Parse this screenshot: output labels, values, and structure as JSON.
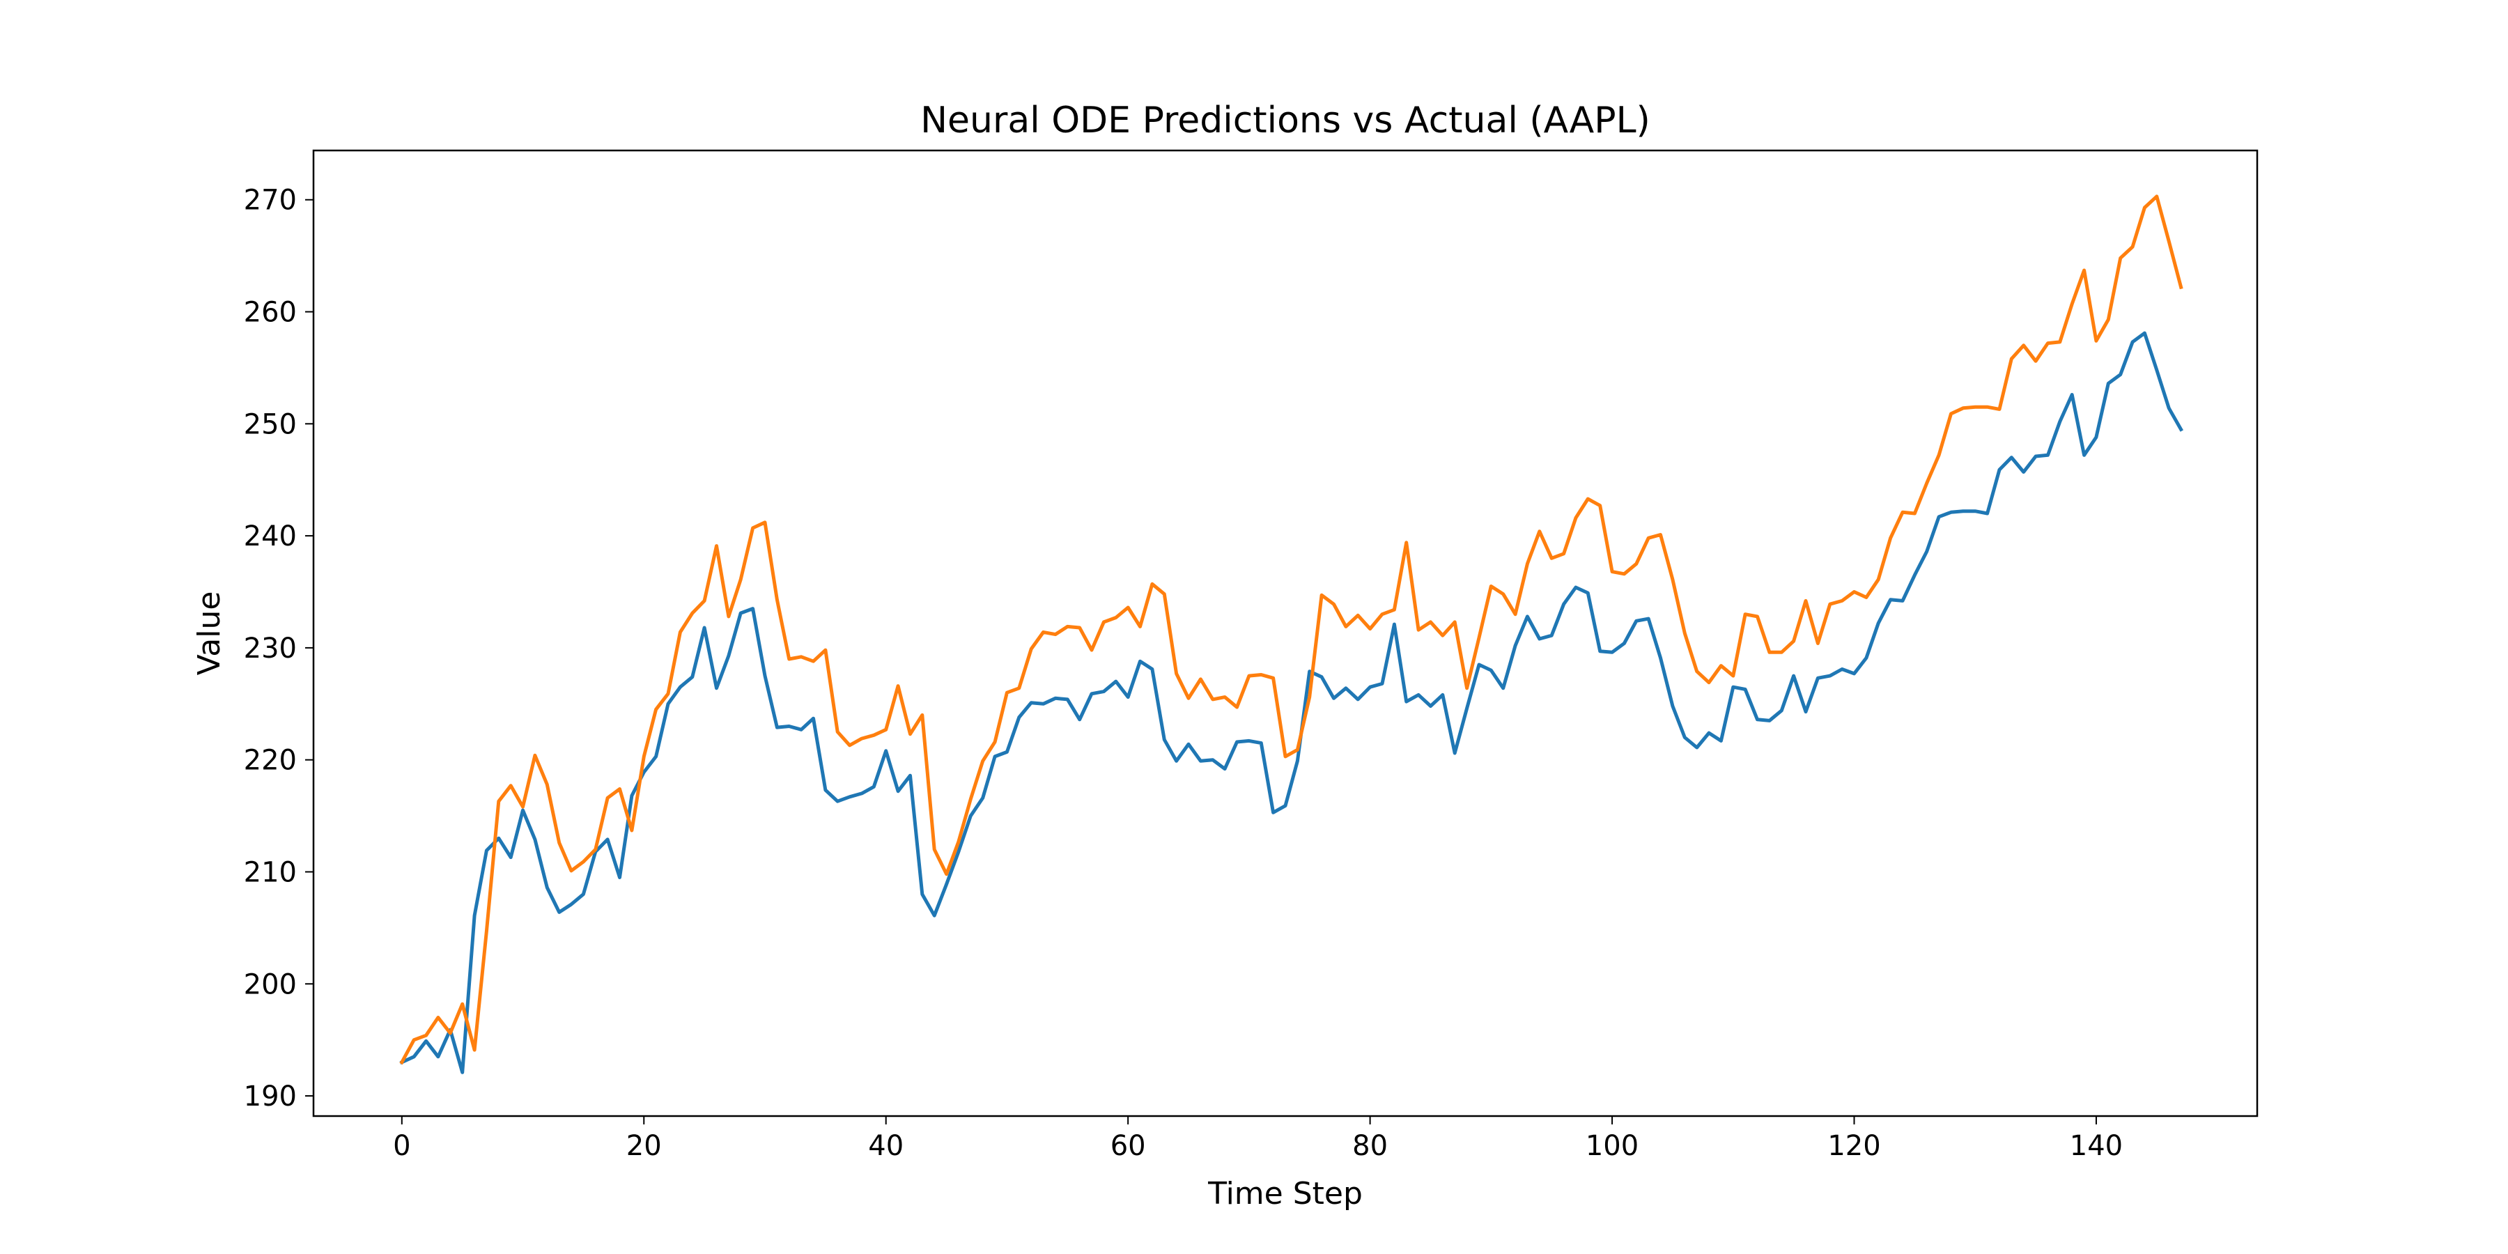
{
  "chart_data": {
    "type": "line",
    "title": "Neural ODE Predictions vs Actual (AAPL)",
    "xlabel": "Time Step",
    "ylabel": "Value",
    "xlim": [
      -7.3,
      153.3
    ],
    "ylim": [
      188.2,
      274.4
    ],
    "xticks": [
      0,
      20,
      40,
      60,
      80,
      100,
      120,
      140
    ],
    "yticks": [
      190,
      200,
      210,
      220,
      230,
      240,
      250,
      260,
      270
    ],
    "grid": false,
    "legend": "none",
    "series": [
      {
        "color": "#1f77b4",
        "x_start": 0,
        "values": [
          193.0,
          193.5,
          194.9,
          193.5,
          195.9,
          192.1,
          206.1,
          211.9,
          213.0,
          211.3,
          215.5,
          212.9,
          208.6,
          206.4,
          207.1,
          208.0,
          211.8,
          212.9,
          209.5,
          216.8,
          218.9,
          220.3,
          225.0,
          226.5,
          227.4,
          231.8,
          226.4,
          229.3,
          233.1,
          233.5,
          227.5,
          222.9,
          223.0,
          222.7,
          223.7,
          217.3,
          216.3,
          216.7,
          217.0,
          217.6,
          220.8,
          217.2,
          218.6,
          208.0,
          206.1,
          208.9,
          211.8,
          215.0,
          216.6,
          220.3,
          220.7,
          223.8,
          225.1,
          225.0,
          225.5,
          225.4,
          223.6,
          225.9,
          226.1,
          227.0,
          225.6,
          228.8,
          228.1,
          221.8,
          219.9,
          221.4,
          219.9,
          220.0,
          219.2,
          221.6,
          221.7,
          221.5,
          215.3,
          215.9,
          219.9,
          227.9,
          227.4,
          225.5,
          226.4,
          225.4,
          226.5,
          226.8,
          232.1,
          225.2,
          225.8,
          224.8,
          225.8,
          220.6,
          224.6,
          228.5,
          228.0,
          226.4,
          230.2,
          232.8,
          230.8,
          231.1,
          233.9,
          235.4,
          234.9,
          229.7,
          229.6,
          230.4,
          232.4,
          232.6,
          229.1,
          224.8,
          222.0,
          221.1,
          222.4,
          221.7,
          226.5,
          226.3,
          223.6,
          223.5,
          224.4,
          227.5,
          224.3,
          227.3,
          227.5,
          228.1,
          227.7,
          229.1,
          232.2,
          234.3,
          234.2,
          236.5,
          238.6,
          241.7,
          242.1,
          242.2,
          242.2,
          242.0,
          245.9,
          247.0,
          245.7,
          247.1,
          247.2,
          250.2,
          252.6,
          247.2,
          248.8,
          253.6,
          254.4,
          257.3,
          258.1,
          254.8,
          251.4,
          249.5
        ]
      },
      {
        "color": "#ff7f0e",
        "x_start": 0,
        "values": [
          193.0,
          195.0,
          195.4,
          197.0,
          195.6,
          198.2,
          194.1,
          204.7,
          216.3,
          217.7,
          215.8,
          220.4,
          217.8,
          212.6,
          210.1,
          210.9,
          212.0,
          216.6,
          217.4,
          213.7,
          220.3,
          224.5,
          225.9,
          231.4,
          233.1,
          234.2,
          239.1,
          232.8,
          236.1,
          240.7,
          241.2,
          234.3,
          229.0,
          229.2,
          228.8,
          229.8,
          222.5,
          221.3,
          221.9,
          222.2,
          222.7,
          226.6,
          222.3,
          224.0,
          212.0,
          209.8,
          212.7,
          216.5,
          219.9,
          221.6,
          226.0,
          226.4,
          229.9,
          231.4,
          231.2,
          231.9,
          231.8,
          229.8,
          232.3,
          232.7,
          233.6,
          231.9,
          235.7,
          234.8,
          227.7,
          225.5,
          227.2,
          225.4,
          225.6,
          224.7,
          227.5,
          227.6,
          227.3,
          220.3,
          220.9,
          225.6,
          234.7,
          233.9,
          231.9,
          232.9,
          231.7,
          233.0,
          233.4,
          239.4,
          231.6,
          232.3,
          231.1,
          232.3,
          226.4,
          230.9,
          235.5,
          234.8,
          233.0,
          237.5,
          240.4,
          238.0,
          238.4,
          241.6,
          243.3,
          242.7,
          236.8,
          236.6,
          237.5,
          239.8,
          240.1,
          236.1,
          231.3,
          227.9,
          226.9,
          228.4,
          227.5,
          233.0,
          232.8,
          229.6,
          229.6,
          230.6,
          234.2,
          230.4,
          233.9,
          234.2,
          235.0,
          234.5,
          236.1,
          239.8,
          242.1,
          242.0,
          244.7,
          247.2,
          250.9,
          251.4,
          251.5,
          251.5,
          251.3,
          255.8,
          257.0,
          255.6,
          257.2,
          257.3,
          260.7,
          263.7,
          257.4,
          259.3,
          264.8,
          265.8,
          269.3,
          270.3,
          266.3,
          262.2
        ]
      }
    ]
  }
}
